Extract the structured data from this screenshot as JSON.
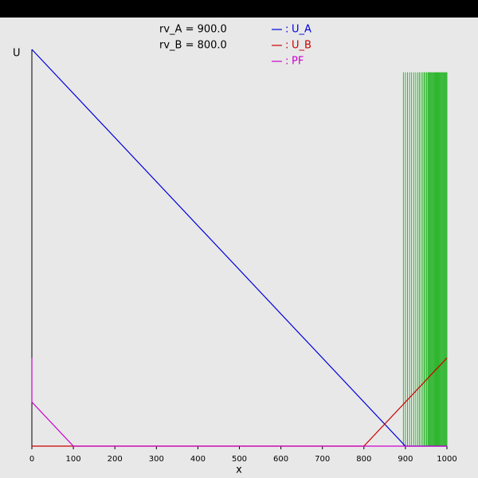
{
  "chart_data": {
    "type": "line",
    "annotations": [
      "rv_A = 900.0",
      "rv_B = 800.0"
    ],
    "xlabel": "x",
    "ylabel": "U",
    "legend_separator": ":",
    "xlim": [
      0,
      1000
    ],
    "ylim": [
      0,
      900
    ],
    "xticks": [
      0,
      100,
      200,
      300,
      400,
      500,
      600,
      700,
      800,
      900,
      1000
    ],
    "series": [
      {
        "name": "U_A",
        "color": "#0000dd",
        "x": [
          0,
          900,
          1000
        ],
        "values": [
          900,
          0,
          0
        ]
      },
      {
        "name": "U_B",
        "color": "#cc0000",
        "x": [
          0,
          800,
          1000
        ],
        "values": [
          0,
          0,
          200
        ]
      },
      {
        "name": "PF",
        "color": "#cc00cc",
        "x": [
          0,
          0,
          100,
          1000
        ],
        "values": [
          200,
          100,
          0,
          0
        ]
      }
    ],
    "markers": {
      "color": "#00aa00",
      "x": [
        895,
        900,
        905,
        910,
        915,
        920,
        925,
        930,
        934,
        938,
        942,
        945,
        948,
        951,
        954,
        956,
        958,
        960,
        962,
        964,
        966,
        968,
        970,
        972,
        974,
        976,
        978,
        980,
        982,
        984,
        986,
        988,
        990,
        992,
        994,
        996,
        998,
        1000
      ],
      "values": [
        848,
        848,
        848,
        848,
        848,
        848,
        848,
        848,
        848,
        848,
        848,
        848,
        848,
        848,
        848,
        848,
        848,
        848,
        848,
        848,
        848,
        848,
        848,
        848,
        848,
        848,
        848,
        848,
        848,
        848,
        848,
        848,
        848,
        848,
        848,
        848,
        848,
        848
      ]
    }
  }
}
